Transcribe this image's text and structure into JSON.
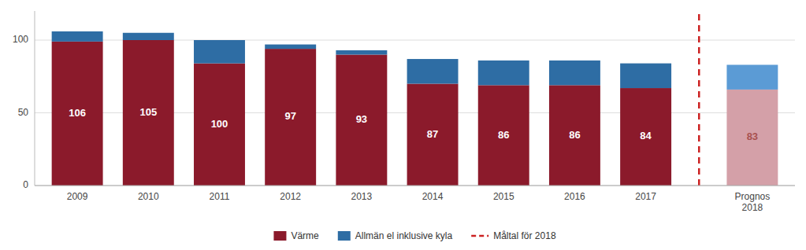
{
  "chart_data": {
    "type": "bar",
    "stacked": true,
    "categories": [
      "2009",
      "2010",
      "2011",
      "2012",
      "2013",
      "2014",
      "2015",
      "2016",
      "2017",
      "Prognos\n2018"
    ],
    "series": [
      {
        "name": "Värme",
        "color": "#8B1A2B",
        "colors": [
          "#8B1A2B",
          "#8B1A2B",
          "#8B1A2B",
          "#8B1A2B",
          "#8B1A2B",
          "#8B1A2B",
          "#8B1A2B",
          "#8B1A2B",
          "#8B1A2B",
          "#D4A0A8"
        ],
        "values": [
          99,
          100,
          84,
          94,
          90,
          70,
          69,
          69,
          67,
          66
        ]
      },
      {
        "name": "Allmän el inklusive kyla",
        "color": "#2E6DA4",
        "colors": [
          "#2E6DA4",
          "#2E6DA4",
          "#2E6DA4",
          "#2E6DA4",
          "#2E6DA4",
          "#2E6DA4",
          "#2E6DA4",
          "#2E6DA4",
          "#2E6DA4",
          "#5B9BD5"
        ],
        "values": [
          7,
          5,
          16,
          3,
          3,
          17,
          17,
          17,
          17,
          17
        ]
      }
    ],
    "totals": [
      106,
      105,
      100,
      97,
      93,
      87,
      86,
      86,
      84,
      83
    ],
    "reference_line": {
      "name": "Måltal för 2018",
      "color": "#CC2222",
      "line_style": "dashed",
      "between": [
        "2017",
        "Prognos\n2018"
      ]
    },
    "ylim": [
      0,
      120
    ],
    "yticks": [
      0,
      50,
      100
    ],
    "grid": true,
    "legend": "bottom"
  }
}
